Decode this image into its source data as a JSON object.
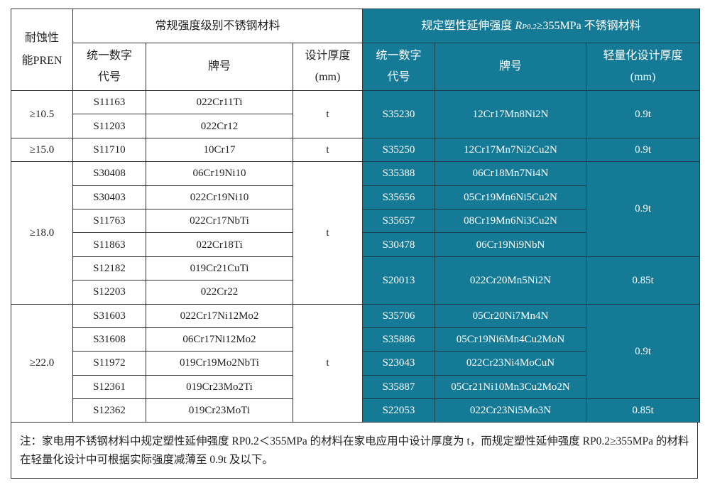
{
  "colors": {
    "accent": "#157a96"
  },
  "header": {
    "pren": "耐蚀性能PREN",
    "normal_group": "常规强度级别不锈钢材料",
    "high_group_prefix": "规定塑性延伸强度 ",
    "high_group_symbol": "R",
    "high_group_sub": "P0.2",
    "high_group_suffix": "≥355MPa 不锈钢材料",
    "code": "统一数字代号",
    "grade": "牌号",
    "design_thickness": "设计厚度(mm)",
    "light_thickness": "轻量化设计厚度(mm)"
  },
  "rows": [
    {
      "code": "S11163",
      "grade": "022Cr11Ti",
      "hcode": "S35230",
      "hgrade": "12Cr17Mn8Ni2N"
    },
    {
      "code": "S11203",
      "grade": "022Cr12"
    },
    {
      "code": "S11710",
      "grade": "10Cr17",
      "hcode": "S35250",
      "hgrade": "12Cr17Mn7Ni2Cu2N"
    },
    {
      "code": "S30408",
      "grade": "06Cr19Ni10",
      "hcode": "S35388",
      "hgrade": "06Cr18Mn7Ni4N"
    },
    {
      "code": "S30403",
      "grade": "022Cr19Ni10",
      "hcode": "S35656",
      "hgrade": "05Cr19Mn6Ni5Cu2N"
    },
    {
      "code": "S11763",
      "grade": "022Cr17NbTi",
      "hcode": "S35657",
      "hgrade": "08Cr19Mn6Ni3Cu2N"
    },
    {
      "code": "S11863",
      "grade": "022Cr18Ti",
      "hcode": "S30478",
      "hgrade": "06Cr19Ni9NbN"
    },
    {
      "code": "S12182",
      "grade": "019Cr21CuTi",
      "hcode": "S20013",
      "hgrade": "022Cr20Mn5Ni2N"
    },
    {
      "code": "S12203",
      "grade": "022Cr22"
    },
    {
      "code": "S31603",
      "grade": "022Cr17Ni12Mo2",
      "hcode": "S35706",
      "hgrade": "05Cr20Ni7Mn4N"
    },
    {
      "code": "S31608",
      "grade": "06Cr17Ni12Mo2",
      "hcode": "S35886",
      "hgrade": "05Cr19Ni6Mn4Cu2MoN"
    },
    {
      "code": "S11972",
      "grade": "019Cr19Mo2NbTi",
      "hcode": "S23043",
      "hgrade": "022Cr23Ni4MoCuN"
    },
    {
      "code": "S12361",
      "grade": "019Cr23Mo2Ti",
      "hcode": "S35887",
      "hgrade": "05Cr21Ni10Mn3Cu2Mo2N"
    },
    {
      "code": "S12362",
      "grade": "019Cr23MoTi",
      "hcode": "S22053",
      "hgrade": "022Cr23Ni5Mo3N"
    }
  ],
  "pren_groups": [
    {
      "label": "≥10.5",
      "span": 2
    },
    {
      "label": "≥15.0",
      "span": 1
    },
    {
      "label": "≥18.0",
      "span": 6
    },
    {
      "label": "≥22.0",
      "span": 5
    }
  ],
  "design_groups": [
    {
      "label": "t",
      "span": 2
    },
    {
      "label": "t",
      "span": 1
    },
    {
      "label": "t",
      "span": 6
    },
    {
      "label": "t",
      "span": 5
    }
  ],
  "light_groups": [
    {
      "label": "0.9t",
      "span": 2
    },
    {
      "label": "0.9t",
      "span": 1
    },
    {
      "label": "0.9t",
      "span": 4
    },
    {
      "label": "0.85t",
      "span": 2
    },
    {
      "label": "0.9t",
      "span": 4
    },
    {
      "label": "0.85t",
      "span": 1
    }
  ],
  "high_spans": [
    2,
    0,
    1,
    1,
    1,
    1,
    1,
    2,
    0,
    1,
    1,
    1,
    1,
    1
  ],
  "note": "注：家电用不锈钢材料中规定塑性延伸强度 RP0.2＜355MPa 的材料在家电应用中设计厚度为 t，而规定塑性延伸强度 RP0.2≥355MPa 的材料在轻量化设计中可根据实际强度减薄至 0.9t 及以下。"
}
